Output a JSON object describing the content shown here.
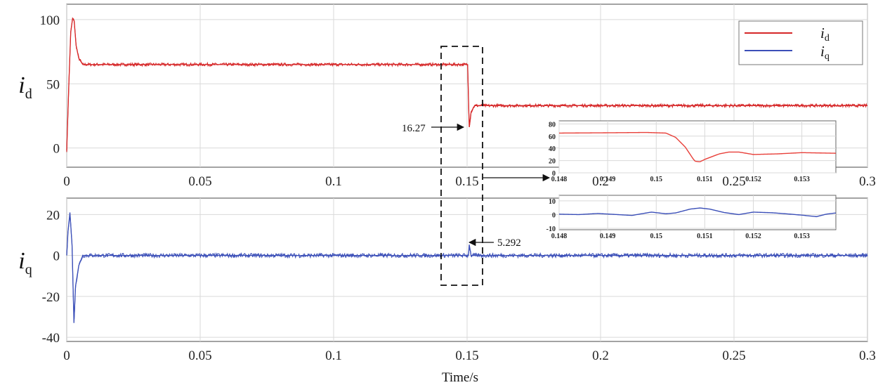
{
  "chart_data": [
    {
      "id": "id_main",
      "type": "line",
      "ylabel": "i",
      "ylabel_sub": "d",
      "xlim": [
        0,
        0.3
      ],
      "ylim": [
        -15,
        112
      ],
      "xticks": [
        0,
        0.05,
        0.1,
        0.15,
        0.2,
        0.25,
        0.3
      ],
      "xtick_labels": [
        "0",
        "0.05",
        "0.1",
        "0.15",
        "0.2",
        "0.25",
        "0.3"
      ],
      "yticks": [
        0,
        50,
        100
      ],
      "ytick_labels": [
        "0",
        "50",
        "100"
      ],
      "grid": true,
      "legend_position": "top-right",
      "series": [
        {
          "name": "i",
          "name_sub": "d",
          "color": "#d62728",
          "keypoints": [
            [
              0,
              -2
            ],
            [
              0.0008,
              50
            ],
            [
              0.0015,
              90
            ],
            [
              0.0022,
              101
            ],
            [
              0.0028,
              99
            ],
            [
              0.0035,
              80
            ],
            [
              0.0045,
              70
            ],
            [
              0.006,
              65
            ],
            [
              0.1502,
              65
            ],
            [
              0.1505,
              40
            ],
            [
              0.1508,
              16.27
            ],
            [
              0.1515,
              28
            ],
            [
              0.1528,
              33
            ],
            [
              0.3,
              33
            ]
          ],
          "noise": 1.2
        }
      ],
      "annotation": {
        "text": "16.27",
        "x": 0.1506,
        "y": 16.27
      }
    },
    {
      "id": "iq_main",
      "type": "line",
      "ylabel": "i",
      "ylabel_sub": "q",
      "xlabel": "Time/s",
      "xlim": [
        0,
        0.3
      ],
      "ylim": [
        -42,
        28
      ],
      "xticks": [
        0,
        0.05,
        0.1,
        0.15,
        0.2,
        0.25,
        0.3
      ],
      "xtick_labels": [
        "0",
        "0.05",
        "0.1",
        "0.15",
        "0.2",
        "0.25",
        "0.3"
      ],
      "yticks": [
        -40,
        -20,
        0,
        20
      ],
      "ytick_labels": [
        "-40",
        "-20",
        "0",
        "20"
      ],
      "grid": true,
      "series": [
        {
          "name": "i",
          "name_sub": "q",
          "color": "#3b4fb8",
          "keypoints": [
            [
              0,
              0
            ],
            [
              0.0005,
              12
            ],
            [
              0.0012,
              21
            ],
            [
              0.002,
              5
            ],
            [
              0.0027,
              -33
            ],
            [
              0.0033,
              -15
            ],
            [
              0.0045,
              -5
            ],
            [
              0.006,
              0
            ],
            [
              0.1505,
              0
            ],
            [
              0.1508,
              5.292
            ],
            [
              0.1515,
              0
            ],
            [
              0.3,
              0
            ]
          ],
          "noise": 1.0
        }
      ],
      "annotation": {
        "text": "5.292",
        "x": 0.151,
        "y": 5.292
      }
    },
    {
      "id": "id_zoom",
      "type": "line",
      "xlim": [
        0.148,
        0.1537
      ],
      "ylim": [
        0,
        85
      ],
      "xticks": [
        0.148,
        0.149,
        0.15,
        0.151,
        0.152,
        0.153
      ],
      "xtick_labels": [
        "0.148",
        "0.149",
        "0.15",
        "0.151",
        "0.152",
        "0.153"
      ],
      "yticks": [
        0,
        20,
        40,
        60,
        80
      ],
      "ytick_labels": [
        "0",
        "20",
        "40",
        "60",
        "80"
      ],
      "grid": true,
      "series": [
        {
          "color": "#e8403a",
          "keypoints": [
            [
              0.148,
              65
            ],
            [
              0.149,
              65.5
            ],
            [
              0.1498,
              66
            ],
            [
              0.1502,
              65
            ],
            [
              0.1504,
              58
            ],
            [
              0.1506,
              42
            ],
            [
              0.15075,
              24
            ],
            [
              0.1508,
              19
            ],
            [
              0.1509,
              18
            ],
            [
              0.151,
              22
            ],
            [
              0.1513,
              31
            ],
            [
              0.1515,
              34
            ],
            [
              0.1517,
              34
            ],
            [
              0.152,
              30
            ],
            [
              0.1525,
              31
            ],
            [
              0.153,
              33
            ],
            [
              0.1537,
              32
            ]
          ]
        }
      ]
    },
    {
      "id": "iq_zoom",
      "type": "line",
      "xlim": [
        0.148,
        0.1537
      ],
      "ylim": [
        -11,
        14
      ],
      "xticks": [
        0.148,
        0.149,
        0.15,
        0.151,
        0.152,
        0.153
      ],
      "xtick_labels": [
        "0.148",
        "0.149",
        "0.15",
        "0.151",
        "0.152",
        "0.153"
      ],
      "yticks": [
        -10,
        0,
        10
      ],
      "ytick_labels": [
        "-10",
        "0",
        "10"
      ],
      "grid": true,
      "series": [
        {
          "color": "#3b4fb8",
          "keypoints": [
            [
              0.148,
              0.3
            ],
            [
              0.1484,
              0
            ],
            [
              0.1488,
              0.8
            ],
            [
              0.1492,
              0
            ],
            [
              0.1495,
              -0.6
            ],
            [
              0.1499,
              1.8
            ],
            [
              0.1502,
              0.6
            ],
            [
              0.1504,
              1.2
            ],
            [
              0.1507,
              4
            ],
            [
              0.1509,
              4.8
            ],
            [
              0.1511,
              4
            ],
            [
              0.1514,
              1.5
            ],
            [
              0.1517,
              0
            ],
            [
              0.152,
              1.8
            ],
            [
              0.1524,
              1.3
            ],
            [
              0.1527,
              0.5
            ],
            [
              0.153,
              -0.4
            ],
            [
              0.1533,
              -1.5
            ],
            [
              0.1535,
              0.3
            ],
            [
              0.1537,
              1.2
            ]
          ]
        }
      ]
    }
  ]
}
